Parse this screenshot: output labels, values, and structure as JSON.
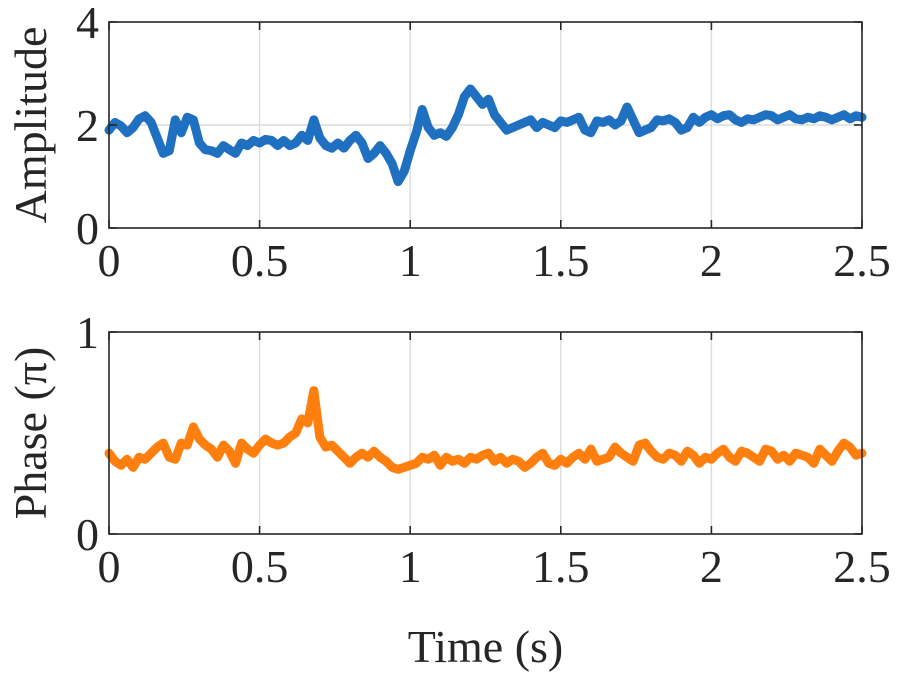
{
  "chart_data": [
    {
      "type": "line",
      "xlabel": "",
      "ylabel": "Amplitude",
      "xlim": [
        0,
        2.5
      ],
      "ylim": [
        0,
        4
      ],
      "xticks": [
        0,
        0.5,
        1,
        1.5,
        2,
        2.5
      ],
      "xtick_labels": [
        "0",
        "0.5",
        "1",
        "1.5",
        "2",
        "2.5"
      ],
      "yticks": [
        0,
        2,
        4
      ],
      "ytick_labels": [
        "0",
        "2",
        "4"
      ],
      "grid": true,
      "color": "#1f70c1",
      "series": [
        {
          "x": [
            0,
            0.02,
            0.04,
            0.06,
            0.08,
            0.1,
            0.12,
            0.14,
            0.16,
            0.18,
            0.2,
            0.22,
            0.24,
            0.26,
            0.28,
            0.3,
            0.32,
            0.34,
            0.36,
            0.38,
            0.4,
            0.42,
            0.44,
            0.46,
            0.48,
            0.5,
            0.52,
            0.54,
            0.56,
            0.58,
            0.6,
            0.62,
            0.64,
            0.66,
            0.68,
            0.7,
            0.72,
            0.74,
            0.76,
            0.78,
            0.8,
            0.82,
            0.84,
            0.86,
            0.88,
            0.9,
            0.92,
            0.94,
            0.96,
            0.98,
            1,
            1.02,
            1.04,
            1.06,
            1.08,
            1.1,
            1.12,
            1.14,
            1.16,
            1.18,
            1.2,
            1.22,
            1.24,
            1.26,
            1.28,
            1.3,
            1.32,
            1.34,
            1.36,
            1.38,
            1.4,
            1.42,
            1.44,
            1.46,
            1.48,
            1.5,
            1.52,
            1.54,
            1.56,
            1.58,
            1.6,
            1.62,
            1.64,
            1.66,
            1.68,
            1.7,
            1.72,
            1.74,
            1.76,
            1.78,
            1.8,
            1.82,
            1.84,
            1.86,
            1.88,
            1.9,
            1.92,
            1.94,
            1.96,
            1.98,
            2,
            2.02,
            2.04,
            2.06,
            2.08,
            2.1,
            2.12,
            2.14,
            2.16,
            2.18,
            2.2,
            2.22,
            2.24,
            2.26,
            2.28,
            2.3,
            2.32,
            2.34,
            2.36,
            2.38,
            2.4,
            2.42,
            2.44,
            2.46,
            2.48,
            2.5
          ],
          "y": [
            1.9,
            2.05,
            1.98,
            1.85,
            1.95,
            2.12,
            2.18,
            2.05,
            1.75,
            1.45,
            1.5,
            2.1,
            1.85,
            2.15,
            2.1,
            1.65,
            1.52,
            1.5,
            1.45,
            1.6,
            1.52,
            1.45,
            1.65,
            1.6,
            1.7,
            1.65,
            1.72,
            1.7,
            1.6,
            1.7,
            1.6,
            1.65,
            1.8,
            1.7,
            2.1,
            1.75,
            1.6,
            1.55,
            1.65,
            1.55,
            1.7,
            1.8,
            1.65,
            1.35,
            1.45,
            1.6,
            1.45,
            1.25,
            0.9,
            1.1,
            1.5,
            1.85,
            2.3,
            1.95,
            1.8,
            1.85,
            1.78,
            1.95,
            2.2,
            2.55,
            2.7,
            2.55,
            2.4,
            2.5,
            2.2,
            2.05,
            1.9,
            1.95,
            2.0,
            2.05,
            2.1,
            1.95,
            2.05,
            2.0,
            1.95,
            2.08,
            2.05,
            2.1,
            2.15,
            1.9,
            1.85,
            2.08,
            2.05,
            2.1,
            2.0,
            2.08,
            2.35,
            2.1,
            1.85,
            1.9,
            1.95,
            2.1,
            2.08,
            2.12,
            2.05,
            1.9,
            1.95,
            2.15,
            2.05,
            2.15,
            2.2,
            2.12,
            2.18,
            2.2,
            2.1,
            2.05,
            2.12,
            2.1,
            2.15,
            2.2,
            2.18,
            2.1,
            2.15,
            2.2,
            2.12,
            2.1,
            2.15,
            2.12,
            2.18,
            2.15,
            2.1,
            2.15,
            2.2,
            2.12,
            2.18,
            2.15
          ]
        }
      ]
    },
    {
      "type": "line",
      "xlabel": "Time (s)",
      "ylabel": "Phase (π)",
      "xlim": [
        0,
        2.5
      ],
      "ylim": [
        0,
        1
      ],
      "xticks": [
        0,
        0.5,
        1,
        1.5,
        2,
        2.5
      ],
      "xtick_labels": [
        "0",
        "0.5",
        "1",
        "1.5",
        "2",
        "2.5"
      ],
      "yticks": [
        0,
        1
      ],
      "ytick_labels": [
        "0",
        "1"
      ],
      "grid": true,
      "color": "#ff7f0e",
      "series": [
        {
          "x": [
            0,
            0.02,
            0.04,
            0.06,
            0.08,
            0.1,
            0.12,
            0.14,
            0.16,
            0.18,
            0.2,
            0.22,
            0.24,
            0.26,
            0.28,
            0.3,
            0.32,
            0.34,
            0.36,
            0.38,
            0.4,
            0.42,
            0.44,
            0.46,
            0.48,
            0.5,
            0.52,
            0.54,
            0.56,
            0.58,
            0.6,
            0.62,
            0.64,
            0.66,
            0.68,
            0.7,
            0.72,
            0.74,
            0.76,
            0.78,
            0.8,
            0.82,
            0.84,
            0.86,
            0.88,
            0.9,
            0.92,
            0.94,
            0.96,
            0.98,
            1,
            1.02,
            1.04,
            1.06,
            1.08,
            1.1,
            1.12,
            1.14,
            1.16,
            1.18,
            1.2,
            1.22,
            1.24,
            1.26,
            1.28,
            1.3,
            1.32,
            1.34,
            1.36,
            1.38,
            1.4,
            1.42,
            1.44,
            1.46,
            1.48,
            1.5,
            1.52,
            1.54,
            1.56,
            1.58,
            1.6,
            1.62,
            1.64,
            1.66,
            1.68,
            1.7,
            1.72,
            1.74,
            1.76,
            1.78,
            1.8,
            1.82,
            1.84,
            1.86,
            1.88,
            1.9,
            1.92,
            1.94,
            1.96,
            1.98,
            2,
            2.02,
            2.04,
            2.06,
            2.08,
            2.1,
            2.12,
            2.14,
            2.16,
            2.18,
            2.2,
            2.22,
            2.24,
            2.26,
            2.28,
            2.3,
            2.32,
            2.34,
            2.36,
            2.38,
            2.4,
            2.42,
            2.44,
            2.46,
            2.48,
            2.5
          ],
          "y": [
            0.4,
            0.36,
            0.34,
            0.37,
            0.33,
            0.38,
            0.37,
            0.4,
            0.43,
            0.45,
            0.38,
            0.37,
            0.45,
            0.44,
            0.53,
            0.47,
            0.44,
            0.42,
            0.38,
            0.44,
            0.41,
            0.35,
            0.45,
            0.42,
            0.4,
            0.44,
            0.47,
            0.45,
            0.44,
            0.45,
            0.48,
            0.5,
            0.57,
            0.55,
            0.71,
            0.48,
            0.43,
            0.44,
            0.41,
            0.38,
            0.35,
            0.38,
            0.4,
            0.38,
            0.41,
            0.38,
            0.36,
            0.33,
            0.32,
            0.33,
            0.34,
            0.35,
            0.38,
            0.37,
            0.39,
            0.34,
            0.38,
            0.36,
            0.37,
            0.35,
            0.38,
            0.37,
            0.39,
            0.4,
            0.36,
            0.38,
            0.35,
            0.37,
            0.36,
            0.33,
            0.35,
            0.38,
            0.4,
            0.35,
            0.34,
            0.37,
            0.35,
            0.38,
            0.4,
            0.37,
            0.42,
            0.36,
            0.37,
            0.38,
            0.43,
            0.4,
            0.38,
            0.36,
            0.44,
            0.45,
            0.41,
            0.38,
            0.37,
            0.4,
            0.39,
            0.36,
            0.41,
            0.39,
            0.35,
            0.38,
            0.37,
            0.4,
            0.42,
            0.38,
            0.36,
            0.41,
            0.4,
            0.38,
            0.36,
            0.42,
            0.41,
            0.37,
            0.39,
            0.36,
            0.4,
            0.39,
            0.38,
            0.35,
            0.42,
            0.39,
            0.36,
            0.41,
            0.45,
            0.43,
            0.39,
            0.4
          ]
        }
      ]
    }
  ]
}
